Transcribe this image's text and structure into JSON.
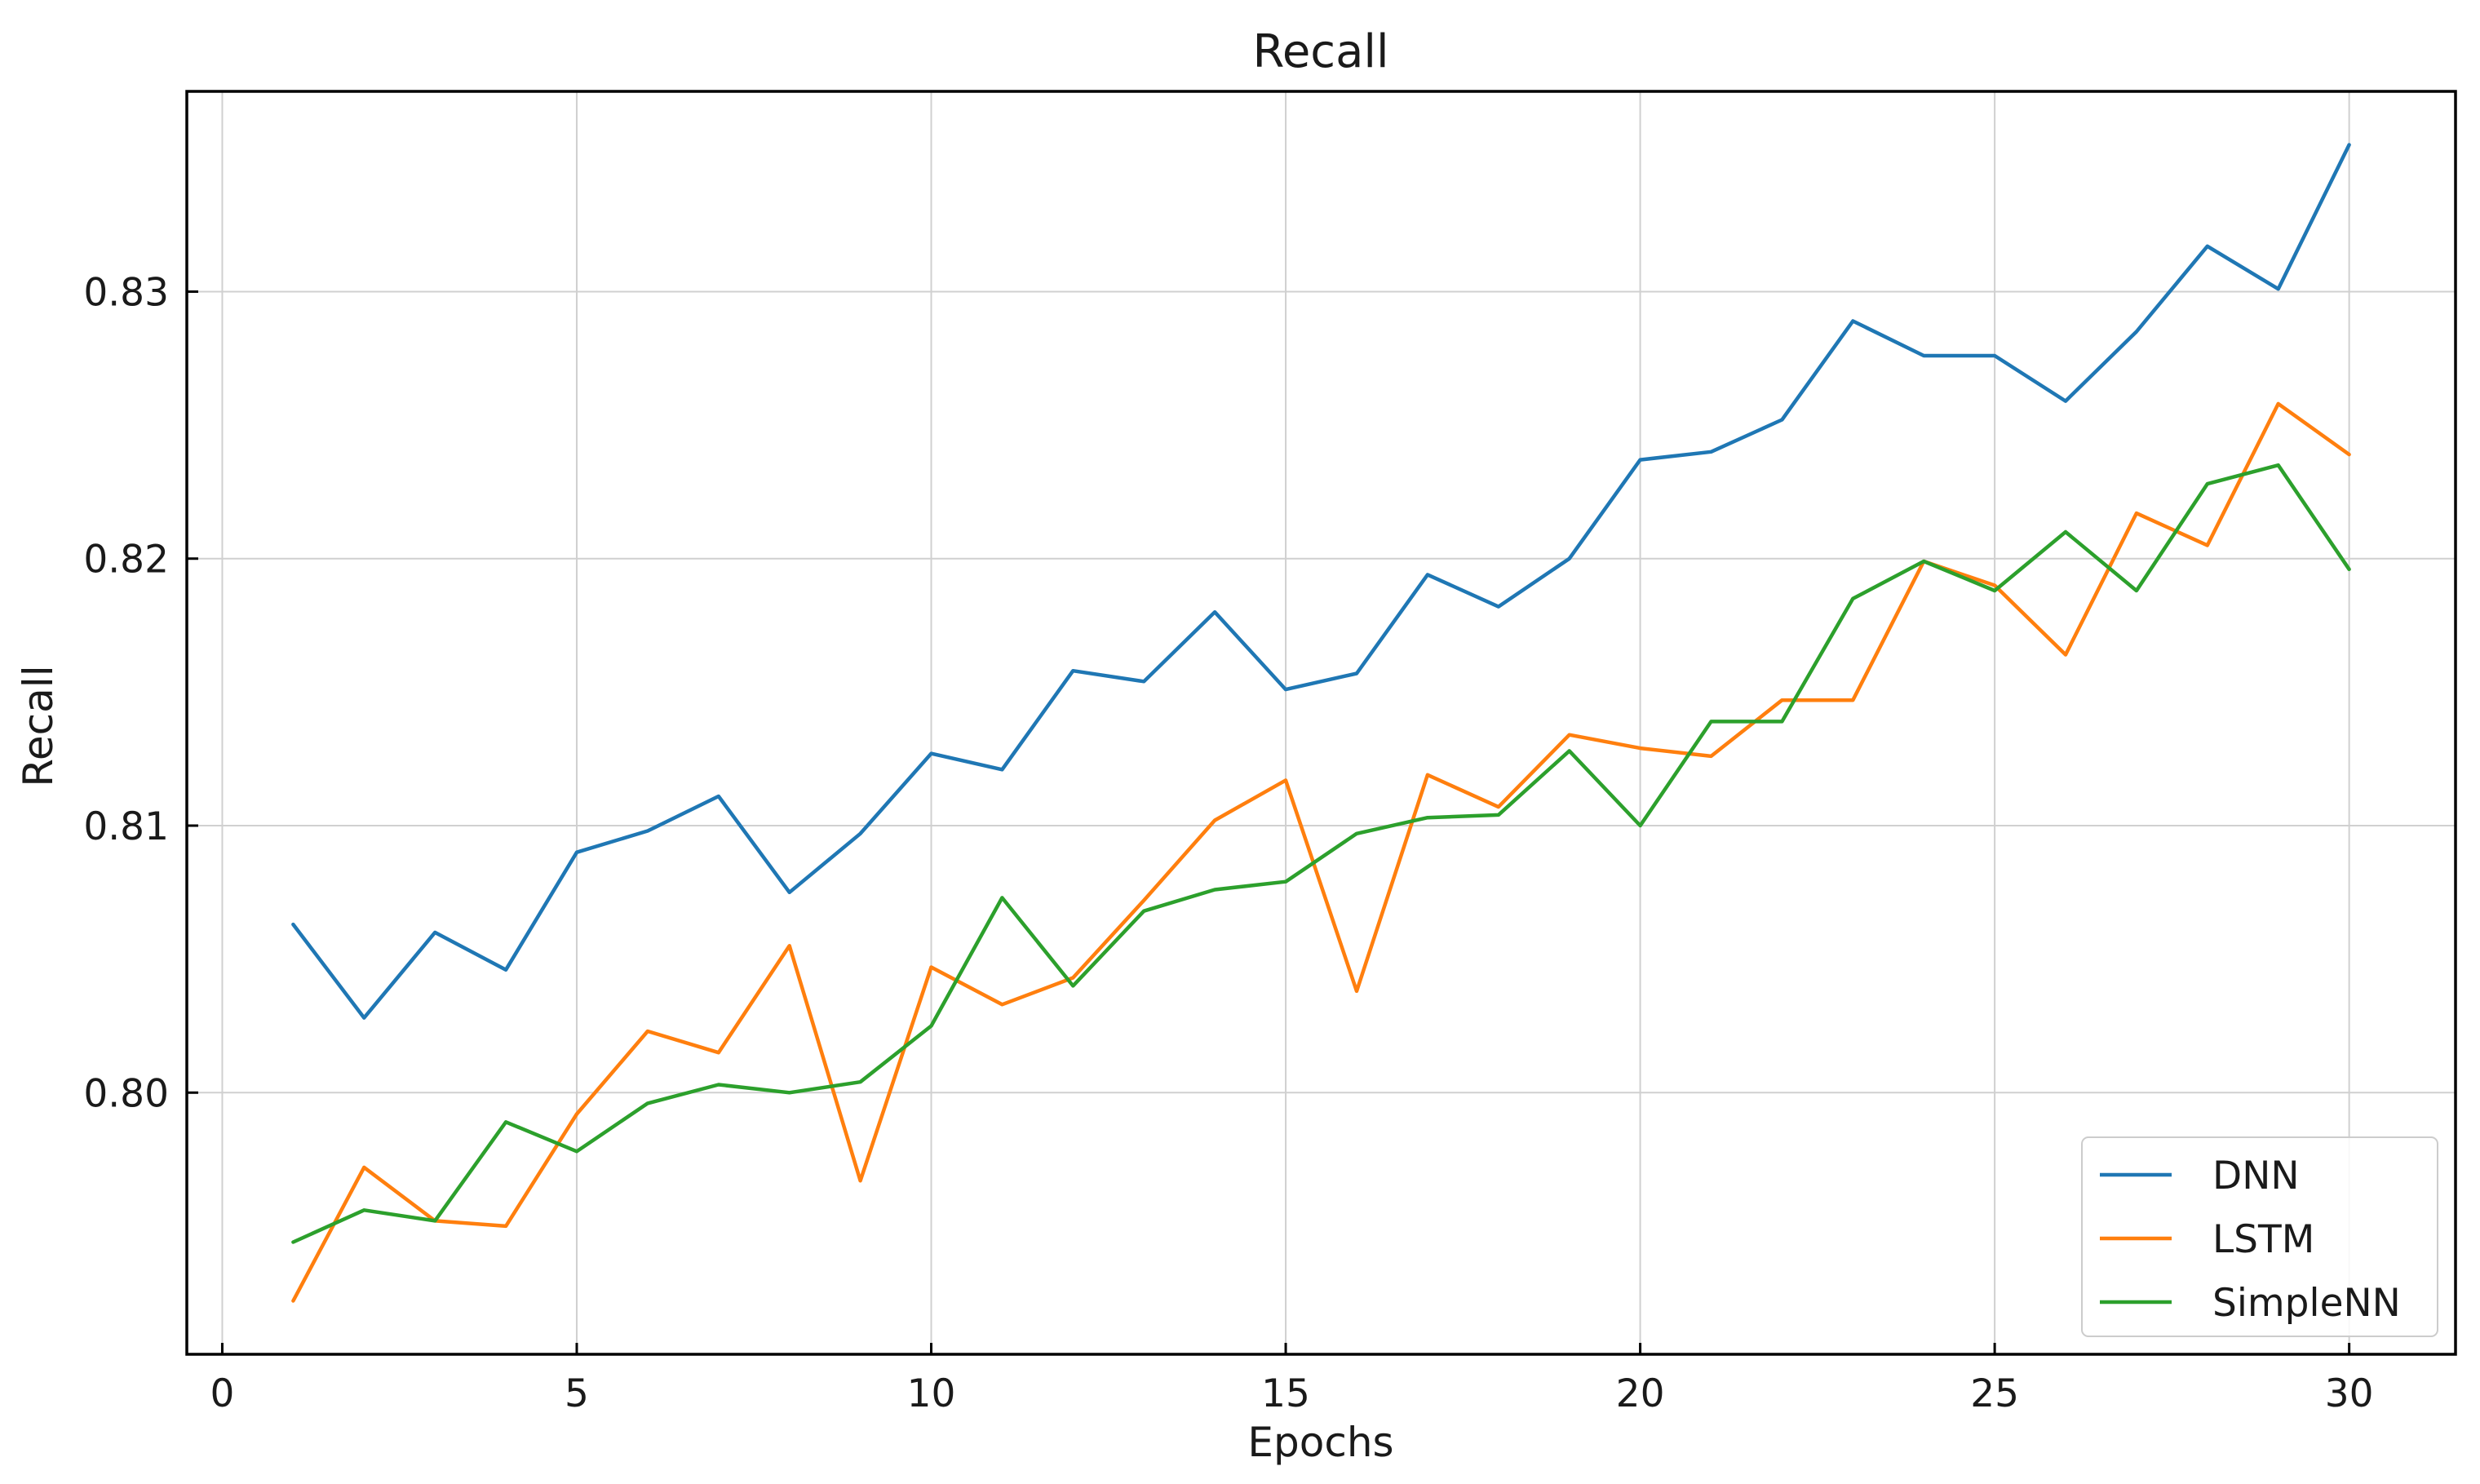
{
  "chart_data": {
    "type": "line",
    "title": "Recall",
    "xlabel": "Epochs",
    "ylabel": "Recall",
    "xlim": [
      -0.5,
      31.5
    ],
    "ylim": [
      0.7902,
      0.8375
    ],
    "xticks": [
      0,
      5,
      10,
      15,
      20,
      25,
      30
    ],
    "xtick_labels": [
      "0",
      "5",
      "10",
      "15",
      "20",
      "25",
      "30"
    ],
    "yticks": [
      0.8,
      0.81,
      0.82,
      0.83
    ],
    "ytick_labels": [
      "0.80",
      "0.81",
      "0.82",
      "0.83"
    ],
    "grid": true,
    "legend_position": "lower-right",
    "x": [
      1,
      2,
      3,
      4,
      5,
      6,
      7,
      8,
      9,
      10,
      11,
      12,
      13,
      14,
      15,
      16,
      17,
      18,
      19,
      20,
      21,
      22,
      23,
      24,
      25,
      26,
      27,
      28,
      29,
      30
    ],
    "series": [
      {
        "name": "DNN",
        "color": "#1f77b4",
        "values": [
          0.8063,
          0.8028,
          0.806,
          0.8046,
          0.809,
          0.8098,
          0.8111,
          0.8075,
          0.8097,
          0.8127,
          0.8121,
          0.8158,
          0.8154,
          0.818,
          0.8151,
          0.8157,
          0.8194,
          0.8182,
          0.82,
          0.8237,
          0.824,
          0.8252,
          0.8289,
          0.8276,
          0.8276,
          0.8259,
          0.8285,
          0.8317,
          0.8301,
          0.8355
        ]
      },
      {
        "name": "LSTM",
        "color": "#ff7f0e",
        "values": [
          0.7922,
          0.7972,
          0.7952,
          0.795,
          0.7992,
          0.8023,
          0.8015,
          0.8055,
          0.7967,
          0.8047,
          0.8033,
          0.8043,
          0.8072,
          0.8102,
          0.8117,
          0.8038,
          0.8119,
          0.8107,
          0.8134,
          0.8129,
          0.8126,
          0.8147,
          0.8147,
          0.8199,
          0.819,
          0.8164,
          0.8217,
          0.8205,
          0.8258,
          0.8239
        ]
      },
      {
        "name": "SimpleNN",
        "color": "#2ca02c",
        "values": [
          0.7944,
          0.7956,
          0.7952,
          0.7989,
          0.7978,
          0.7996,
          0.8003,
          0.8,
          0.8004,
          0.8025,
          0.8073,
          0.804,
          0.8068,
          0.8076,
          0.8079,
          0.8097,
          0.8103,
          0.8104,
          0.8128,
          0.81,
          0.8139,
          0.8139,
          0.8185,
          0.8199,
          0.8188,
          0.821,
          0.8188,
          0.8228,
          0.8235,
          0.8196
        ]
      }
    ]
  }
}
